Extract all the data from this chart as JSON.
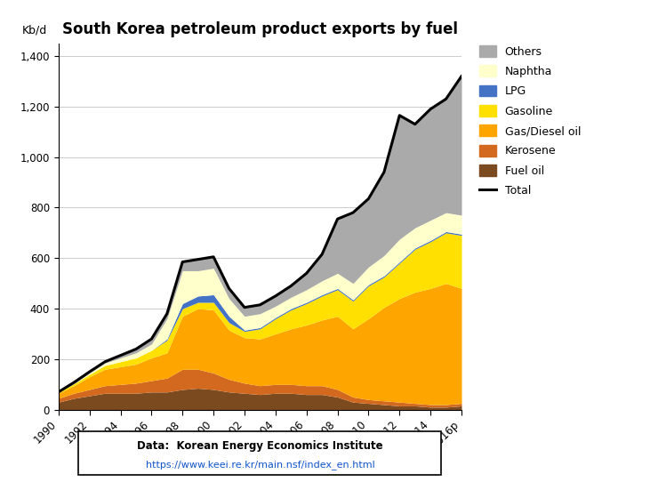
{
  "title": "South Korea petroleum product exports by fuel",
  "ylabel": "Kb/d",
  "ylim": [
    0,
    1450
  ],
  "yticks": [
    0,
    200,
    400,
    600,
    800,
    1000,
    1200,
    1400
  ],
  "years": [
    1990,
    1991,
    1992,
    1993,
    1994,
    1995,
    1996,
    1997,
    1998,
    1999,
    2000,
    2001,
    2002,
    2003,
    2004,
    2005,
    2006,
    2007,
    2008,
    2009,
    2010,
    2011,
    2012,
    2013,
    2014,
    2015,
    2016
  ],
  "fuel_oil": [
    30,
    45,
    55,
    65,
    65,
    65,
    70,
    70,
    80,
    85,
    80,
    70,
    65,
    60,
    65,
    65,
    60,
    60,
    50,
    30,
    25,
    20,
    15,
    15,
    10,
    10,
    15
  ],
  "kerosene": [
    15,
    20,
    25,
    30,
    35,
    40,
    45,
    55,
    80,
    75,
    65,
    50,
    40,
    35,
    35,
    35,
    35,
    35,
    30,
    20,
    15,
    15,
    15,
    10,
    10,
    10,
    10
  ],
  "gas_diesel": [
    20,
    30,
    50,
    65,
    70,
    75,
    90,
    100,
    210,
    240,
    250,
    195,
    180,
    185,
    200,
    220,
    240,
    260,
    290,
    270,
    320,
    370,
    410,
    440,
    460,
    480,
    455
  ],
  "gasoline": [
    5,
    8,
    10,
    15,
    20,
    25,
    30,
    50,
    30,
    25,
    30,
    30,
    25,
    40,
    60,
    75,
    85,
    95,
    105,
    110,
    130,
    120,
    140,
    170,
    185,
    200,
    210
  ],
  "lpg": [
    0,
    0,
    0,
    0,
    0,
    0,
    0,
    5,
    20,
    25,
    30,
    25,
    5,
    5,
    5,
    5,
    5,
    5,
    5,
    5,
    5,
    5,
    5,
    5,
    5,
    5,
    5
  ],
  "naphtha": [
    0,
    0,
    5,
    10,
    15,
    20,
    25,
    80,
    130,
    100,
    105,
    70,
    55,
    55,
    45,
    45,
    50,
    55,
    60,
    65,
    70,
    80,
    90,
    80,
    80,
    75,
    75
  ],
  "others": [
    0,
    5,
    5,
    5,
    10,
    15,
    20,
    20,
    35,
    45,
    45,
    40,
    35,
    35,
    40,
    45,
    65,
    105,
    215,
    280,
    270,
    330,
    490,
    410,
    440,
    450,
    550
  ],
  "total": [
    70,
    108,
    150,
    190,
    215,
    240,
    280,
    380,
    585,
    595,
    605,
    480,
    405,
    415,
    450,
    490,
    540,
    615,
    755,
    780,
    835,
    940,
    1165,
    1130,
    1190,
    1230,
    1320
  ],
  "colors": {
    "fuel_oil": "#7B4A1E",
    "kerosene": "#D2691E",
    "gas_diesel": "#FFA500",
    "gasoline": "#FFE000",
    "lpg": "#4472C4",
    "naphtha": "#FFFFCC",
    "others": "#AAAAAA"
  },
  "data_source": "Data:  Korean Energy Economics Institute",
  "data_url": "https://www.keei.re.kr/main.nsf/index_en.html",
  "background_color": "#FFFFFF"
}
